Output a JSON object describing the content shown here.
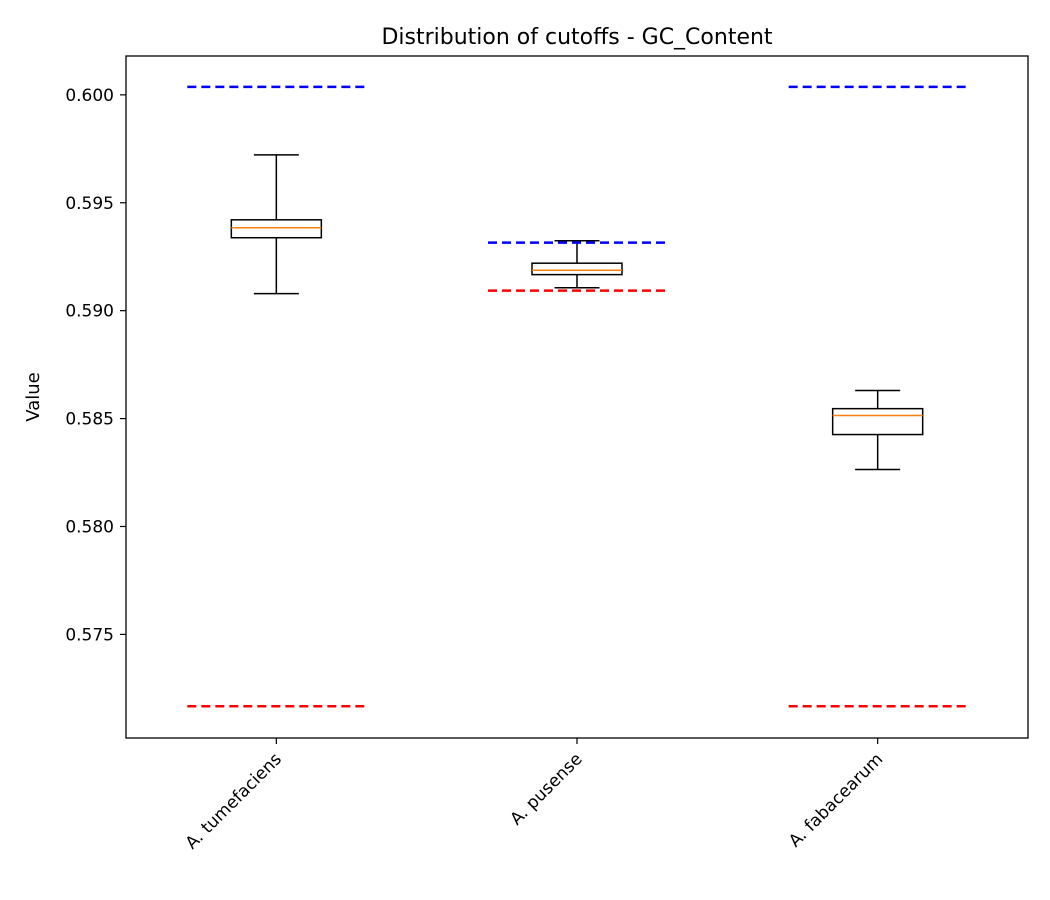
{
  "chart_data": {
    "type": "box",
    "title": "Distribution of cutoffs - GC_Content",
    "xlabel": "",
    "ylabel": "Value",
    "ylim": [
      0.5702,
      0.6018
    ],
    "yticks": [
      0.575,
      0.58,
      0.585,
      0.59,
      0.595,
      0.6
    ],
    "ytick_labels": [
      "0.575",
      "0.580",
      "0.585",
      "0.590",
      "0.595",
      "0.600"
    ],
    "categories": [
      "A. tumefaciens",
      "A. pusense",
      "A. fabacearum"
    ],
    "boxes": [
      {
        "whisker_low": 0.59079,
        "q1": 0.59338,
        "median": 0.59384,
        "q3": 0.59421,
        "whisker_high": 0.59722,
        "upper_cutoff": 0.60037,
        "lower_cutoff": 0.57167
      },
      {
        "whisker_low": 0.59106,
        "q1": 0.59167,
        "median": 0.59187,
        "q3": 0.5922,
        "whisker_high": 0.59324,
        "upper_cutoff": 0.59315,
        "lower_cutoff": 0.59093
      },
      {
        "whisker_low": 0.58264,
        "q1": 0.58426,
        "median": 0.58514,
        "q3": 0.58546,
        "whisker_high": 0.5863,
        "upper_cutoff": 0.60037,
        "lower_cutoff": 0.57167
      }
    ],
    "grid": false,
    "colors": {
      "box": "#000000",
      "median": "#ff7f0e",
      "upper_cutoff": "#0000ff",
      "lower_cutoff": "#ff0000"
    }
  }
}
